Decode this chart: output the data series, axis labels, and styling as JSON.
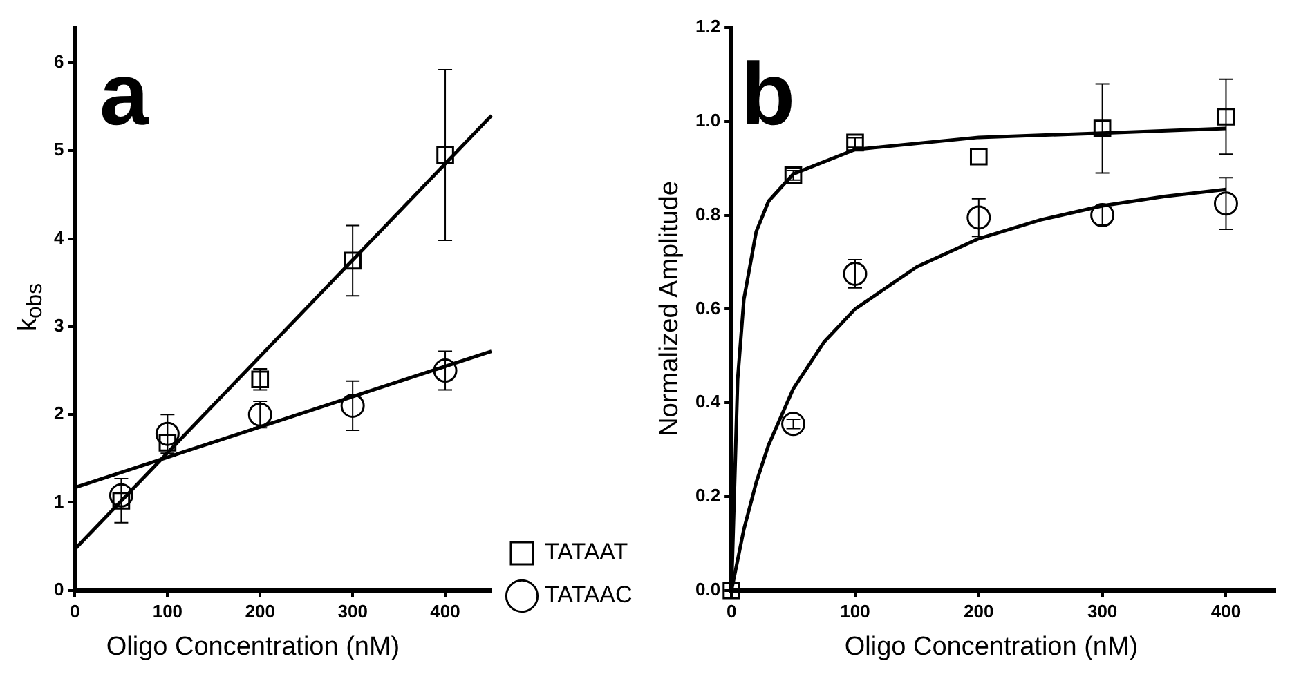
{
  "chart_data": [
    {
      "type": "scatter",
      "xlabel": "Oligo Concentration (nM)",
      "ylabel": "k$_{obs}$",
      "annotations": [
        "a"
      ],
      "x": [
        50,
        100,
        200,
        300,
        400
      ],
      "xlim": [
        0,
        450
      ],
      "xticks": [
        0,
        100,
        200,
        300,
        400
      ],
      "ylim": [
        0,
        6.4
      ],
      "yticks": [
        0,
        1,
        2,
        3,
        4,
        5,
        6
      ],
      "grid": false,
      "legend": "bottom right",
      "series": [
        {
          "name": "TATAAT",
          "color": "#000000",
          "marker": "square",
          "values": [
            1.02,
            1.68,
            2.4,
            3.75,
            4.95
          ],
          "errors": [
            0.25,
            null,
            0.12,
            0.4,
            0.97
          ]
        },
        {
          "name": "TATAAC",
          "color": "#000000",
          "marker": "circle",
          "values": [
            1.08,
            1.78,
            2.0,
            2.1,
            2.5
          ],
          "errors": [
            null,
            0.22,
            0.15,
            0.28,
            0.22
          ]
        },
        {
          "type": "line",
          "color": "#000000",
          "marker": "none",
          "x": [
            0,
            450
          ],
          "values": [
            0.47,
            5.4
          ]
        },
        {
          "type": "line",
          "color": "#000000",
          "marker": "none",
          "x": [
            0,
            450
          ],
          "values": [
            1.17,
            2.72
          ]
        }
      ]
    },
    {
      "type": "scatter",
      "xlabel": "Oligo Concentration (nM)",
      "ylabel": "Normalized Amplitude",
      "annotations": [
        "b"
      ],
      "x": [
        0,
        50,
        100,
        200,
        300,
        400
      ],
      "xlim": [
        0,
        440
      ],
      "xticks": [
        0,
        100,
        200,
        300,
        400
      ],
      "ylim": [
        0,
        1.2
      ],
      "yticks": [
        {
          "value": 0,
          "label": "0.0"
        },
        {
          "value": 0.2,
          "label": "0.2"
        },
        {
          "value": 0.4,
          "label": "0.4"
        },
        {
          "value": 0.6,
          "label": "0.6"
        },
        {
          "value": 0.8,
          "label": "0.8"
        },
        {
          "value": 1,
          "label": "1.0"
        },
        {
          "value": 1.2,
          "label": "1.2"
        }
      ],
      "grid": false,
      "legend": false,
      "series": [
        {
          "color": "#000000",
          "marker": "square",
          "values": [
            0,
            0.885,
            0.955,
            0.925,
            0.985,
            1.01
          ],
          "errors": [
            null,
            0.01,
            0.01,
            null,
            0.095,
            0.08
          ]
        },
        {
          "color": "#000000",
          "marker": "circle",
          "values": [
            null,
            0.355,
            0.675,
            0.795,
            0.8,
            0.825
          ],
          "errors": [
            null,
            0.01,
            0.03,
            0.04,
            0.02,
            0.055
          ]
        },
        {
          "type": "line",
          "color": "#000000",
          "marker": "none",
          "x": [
            0,
            5,
            10,
            20,
            30,
            50,
            100,
            200,
            300,
            400
          ],
          "values": [
            0,
            0.45,
            0.62,
            0.765,
            0.83,
            0.888,
            0.94,
            0.966,
            0.975,
            0.985
          ]
        },
        {
          "type": "line",
          "color": "#000000",
          "marker": "none",
          "x": [
            0,
            10,
            20,
            30,
            50,
            75,
            100,
            150,
            200,
            250,
            300,
            350,
            400
          ],
          "values": [
            0,
            0.13,
            0.23,
            0.31,
            0.43,
            0.53,
            0.6,
            0.69,
            0.75,
            0.79,
            0.82,
            0.84,
            0.855
          ]
        }
      ]
    }
  ]
}
